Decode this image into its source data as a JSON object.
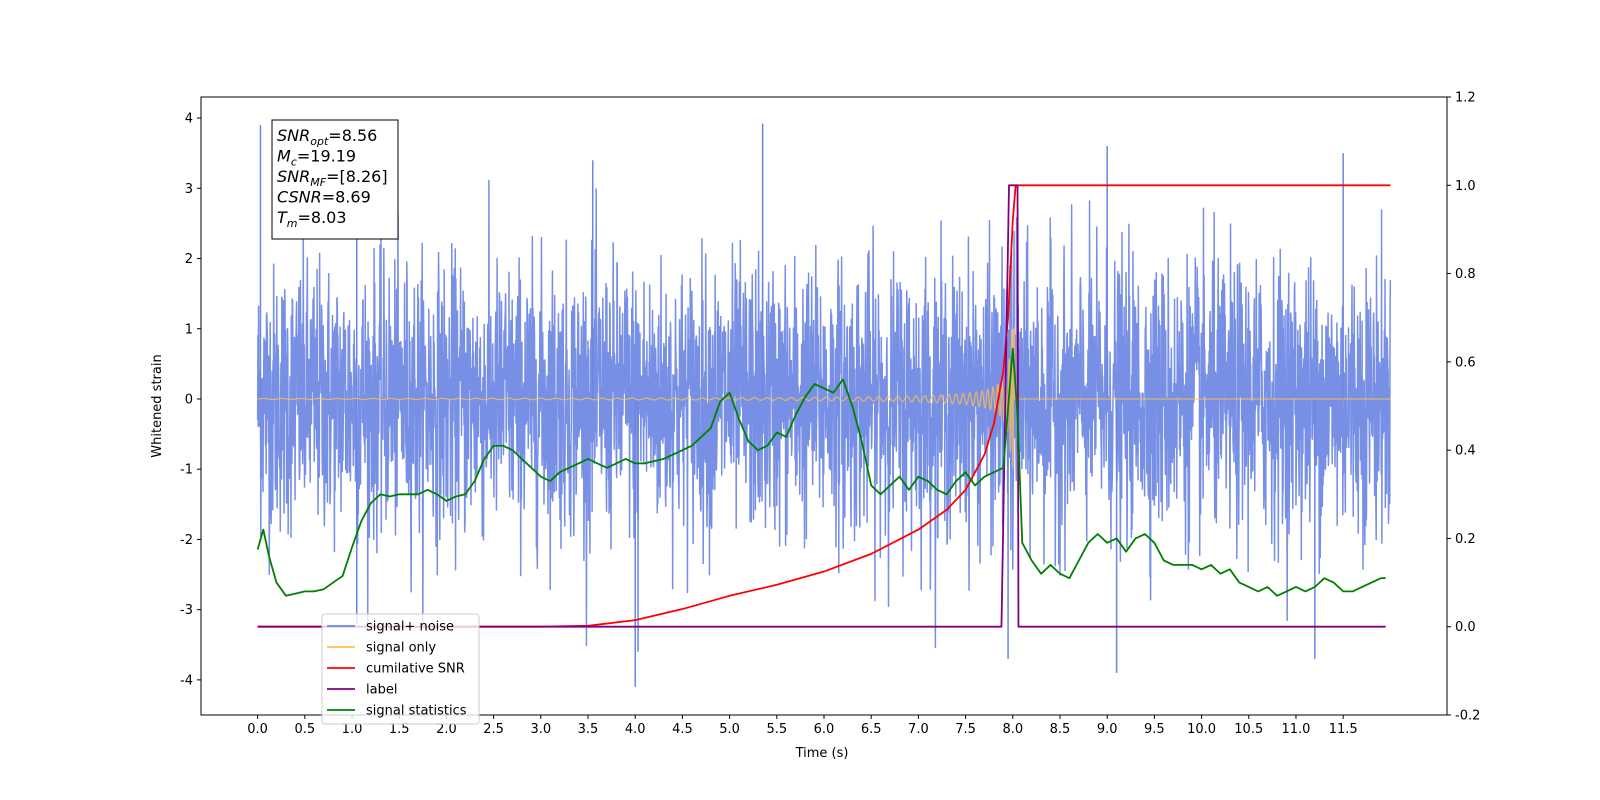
{
  "chart_data": {
    "type": "line",
    "xlabel": "Time (s)",
    "ylabel": "Whitened strain",
    "xlim": [
      -0.6,
      12.6
    ],
    "ylim": [
      -4.5,
      4.3
    ],
    "y2lim": [
      -0.2,
      1.2
    ],
    "x_ticks": [
      "0.0",
      "0.5",
      "1.0",
      "1.5",
      "2.0",
      "2.5",
      "3.0",
      "3.5",
      "4.0",
      "4.5",
      "5.0",
      "5.5",
      "6.0",
      "6.5",
      "7.0",
      "7.5",
      "8.0",
      "8.5",
      "9.0",
      "9.5",
      "10.0",
      "10.5",
      "11.0",
      "11.5"
    ],
    "y_ticks": [
      "4",
      "3",
      "2",
      "1",
      "0",
      "-1",
      "-2",
      "-3",
      "-4"
    ],
    "y2_ticks": [
      "1.2",
      "1.0",
      "0.8",
      "0.6",
      "0.4",
      "0.2",
      "0.0",
      "-0.2"
    ],
    "annotation": [
      {
        "base": "SNR",
        "sub": "opt",
        "value": "=8.56"
      },
      {
        "base": "M",
        "sub": "c",
        "value": "=19.19"
      },
      {
        "base": "SNR",
        "sub": "MF",
        "value": "=[8.26]"
      },
      {
        "base": "CSNR",
        "sub": "",
        "value": "=8.69"
      },
      {
        "base": "T",
        "sub": "m",
        "value": "=8.03"
      }
    ],
    "legend_position": "lower-left",
    "legend": [
      {
        "label": "signal+ noise",
        "color": "#6b86e3"
      },
      {
        "label": "signal only",
        "color": "#ffc04d"
      },
      {
        "label": "cumilative SNR",
        "color": "#ff0000"
      },
      {
        "label": "label",
        "color": "#800080"
      },
      {
        "label": "signal statistics",
        "color": "#008000"
      }
    ],
    "series": [
      {
        "name": "signal+ noise",
        "axis": "left",
        "color": "#6b86e3",
        "kind": "noise",
        "envelope": {
          "x_range": [
            0,
            12.0
          ],
          "typical_amplitude": 2.2,
          "peak_amplitude": 3.9,
          "trough_amplitude": -4.1
        }
      },
      {
        "name": "signal only",
        "axis": "left",
        "color": "#ffc04d",
        "kind": "chirp",
        "envelope": {
          "start": 0,
          "merger": 8.0,
          "end": 12.0,
          "max_amplitude": 1.0
        }
      },
      {
        "name": "cumilative SNR",
        "axis": "right",
        "x": [
          0,
          3.0,
          3.5,
          4.0,
          4.5,
          5.0,
          5.5,
          6.0,
          6.5,
          7.0,
          7.3,
          7.5,
          7.7,
          7.8,
          7.9,
          7.95,
          8.0,
          8.03,
          8.05,
          8.1,
          12.0
        ],
        "y": [
          0,
          0,
          0.002,
          0.015,
          0.04,
          0.07,
          0.095,
          0.125,
          0.165,
          0.22,
          0.265,
          0.31,
          0.39,
          0.46,
          0.58,
          0.7,
          0.92,
          1.0,
          1.0,
          1.0,
          1.0
        ]
      },
      {
        "name": "label",
        "axis": "right",
        "x": [
          0,
          7.88,
          7.96,
          8.0,
          8.05,
          8.06,
          11.95
        ],
        "y": [
          0,
          0,
          1.0,
          1.0,
          1.0,
          0,
          0
        ]
      },
      {
        "name": "signal statistics",
        "axis": "right",
        "x": [
          0,
          0.06,
          0.12,
          0.2,
          0.3,
          0.4,
          0.5,
          0.6,
          0.7,
          0.8,
          0.9,
          1.0,
          1.1,
          1.2,
          1.3,
          1.4,
          1.5,
          1.6,
          1.7,
          1.8,
          1.9,
          2.0,
          2.1,
          2.2,
          2.3,
          2.4,
          2.5,
          2.6,
          2.7,
          2.8,
          2.9,
          3.0,
          3.1,
          3.2,
          3.3,
          3.4,
          3.5,
          3.6,
          3.7,
          3.8,
          3.9,
          4.0,
          4.1,
          4.2,
          4.3,
          4.4,
          4.5,
          4.6,
          4.7,
          4.8,
          4.9,
          5.0,
          5.1,
          5.2,
          5.3,
          5.4,
          5.5,
          5.6,
          5.7,
          5.8,
          5.9,
          6.0,
          6.1,
          6.2,
          6.3,
          6.4,
          6.5,
          6.6,
          6.7,
          6.8,
          6.9,
          7.0,
          7.1,
          7.2,
          7.3,
          7.4,
          7.5,
          7.6,
          7.7,
          7.8,
          7.9,
          8.0,
          8.05,
          8.1,
          8.2,
          8.3,
          8.4,
          8.5,
          8.6,
          8.7,
          8.8,
          8.9,
          9.0,
          9.1,
          9.2,
          9.3,
          9.4,
          9.5,
          9.6,
          9.7,
          9.8,
          9.9,
          10.0,
          10.1,
          10.2,
          10.3,
          10.4,
          10.5,
          10.6,
          10.7,
          10.8,
          10.9,
          11.0,
          11.1,
          11.2,
          11.3,
          11.4,
          11.5,
          11.6,
          11.7,
          11.8,
          11.9,
          11.95
        ],
        "y": [
          0.175,
          0.22,
          0.16,
          0.1,
          0.07,
          0.075,
          0.08,
          0.08,
          0.085,
          0.1,
          0.115,
          0.18,
          0.24,
          0.28,
          0.3,
          0.295,
          0.3,
          0.3,
          0.3,
          0.31,
          0.3,
          0.285,
          0.295,
          0.3,
          0.33,
          0.38,
          0.41,
          0.41,
          0.4,
          0.38,
          0.36,
          0.34,
          0.33,
          0.35,
          0.36,
          0.37,
          0.38,
          0.37,
          0.36,
          0.37,
          0.38,
          0.37,
          0.37,
          0.375,
          0.38,
          0.39,
          0.4,
          0.41,
          0.43,
          0.45,
          0.51,
          0.53,
          0.47,
          0.42,
          0.4,
          0.41,
          0.44,
          0.43,
          0.48,
          0.52,
          0.55,
          0.54,
          0.53,
          0.56,
          0.5,
          0.42,
          0.32,
          0.3,
          0.32,
          0.34,
          0.31,
          0.34,
          0.33,
          0.31,
          0.3,
          0.33,
          0.35,
          0.32,
          0.34,
          0.35,
          0.36,
          0.63,
          0.48,
          0.19,
          0.15,
          0.12,
          0.14,
          0.12,
          0.11,
          0.15,
          0.19,
          0.21,
          0.19,
          0.2,
          0.17,
          0.2,
          0.21,
          0.19,
          0.15,
          0.14,
          0.14,
          0.14,
          0.13,
          0.14,
          0.12,
          0.13,
          0.1,
          0.09,
          0.08,
          0.09,
          0.07,
          0.08,
          0.09,
          0.08,
          0.09,
          0.11,
          0.1,
          0.08,
          0.08,
          0.09,
          0.1,
          0.11,
          0.11
        ]
      }
    ]
  }
}
